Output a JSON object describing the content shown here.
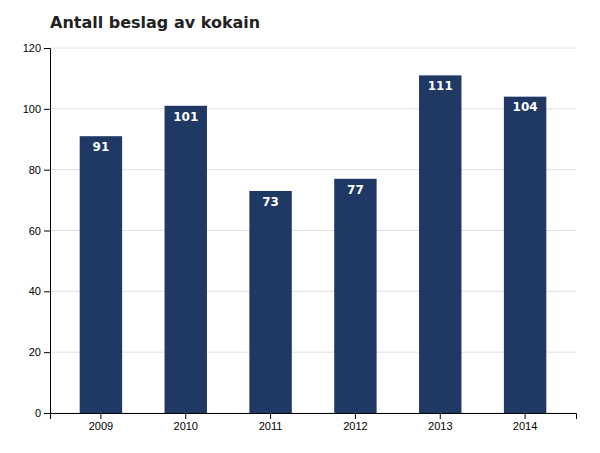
{
  "chart_data": {
    "type": "bar",
    "title": "Antall beslag av kokain",
    "categories": [
      "2009",
      "2010",
      "2011",
      "2012",
      "2013",
      "2014"
    ],
    "values": [
      91,
      101,
      73,
      77,
      111,
      104
    ],
    "color": "#1F3864",
    "ylim": [
      0,
      120
    ],
    "yticks": [
      0,
      20,
      40,
      60,
      80,
      100,
      120
    ],
    "grid": true,
    "data_labels": true
  }
}
